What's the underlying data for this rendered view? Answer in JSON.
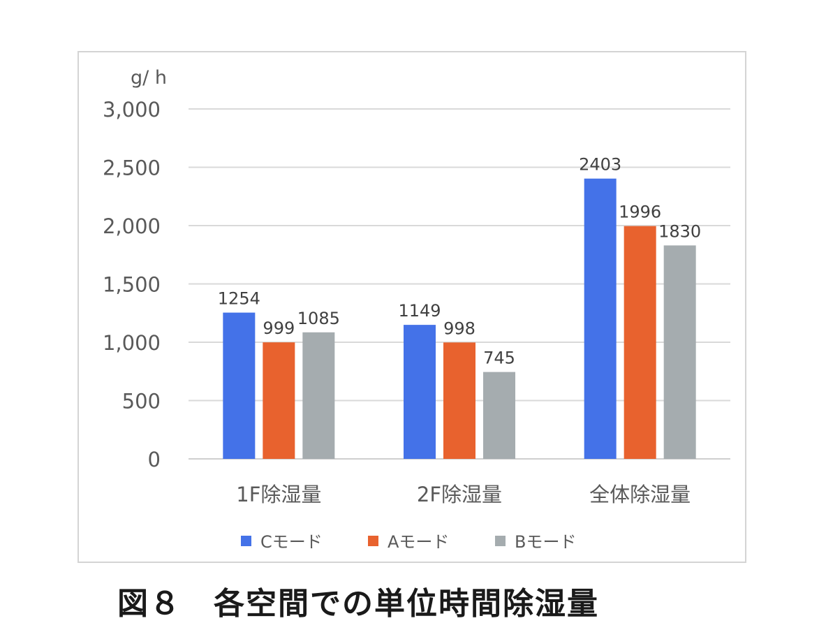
{
  "chart_data": {
    "type": "bar",
    "y_unit_label": "g/ h",
    "categories": [
      "1F除湿量",
      "2F除湿量",
      "全体除湿量"
    ],
    "series": [
      {
        "name": "Cモード",
        "color": "#4472e8",
        "values": [
          1254,
          1149,
          2403
        ],
        "labels": [
          "1254",
          "1149",
          "2403"
        ]
      },
      {
        "name": "Aモード",
        "color": "#e8622e",
        "values": [
          999,
          998,
          1996
        ],
        "labels": [
          "999",
          "998",
          "1996"
        ]
      },
      {
        "name": "Bモード",
        "color": "#a5acaf",
        "values": [
          1085,
          745,
          1830
        ],
        "labels": [
          "1085",
          "745",
          "1830"
        ]
      }
    ],
    "ylim": [
      0,
      3000
    ],
    "yticks": [
      0,
      500,
      1000,
      1500,
      2000,
      2500,
      3000
    ],
    "ytick_labels": [
      "0",
      "500",
      "1,000",
      "1,500",
      "2,000",
      "2,500",
      "3,000"
    ],
    "grid": true,
    "legend_position": "bottom"
  },
  "caption": "図８　各空間での単位時間除湿量"
}
